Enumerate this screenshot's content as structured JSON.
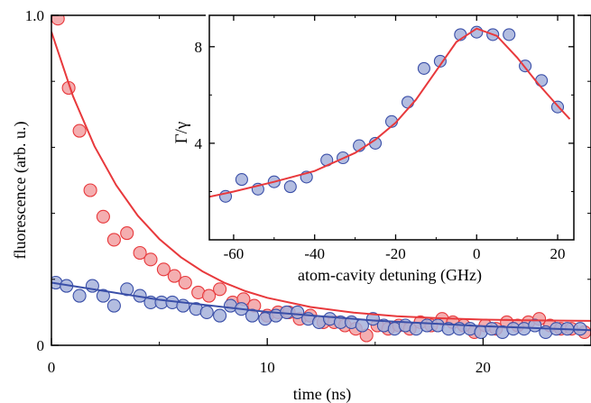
{
  "chart_data": [
    {
      "type": "scatter",
      "title": "",
      "xlabel": "time (ns)",
      "ylabel": "fluorescence (arb. u.)",
      "xlim": [
        0,
        25
      ],
      "ylim": [
        0,
        1.0
      ],
      "x_ticks": [
        0,
        10,
        20
      ],
      "x_tick_labels": [
        "0",
        "10",
        "20"
      ],
      "y_ticks": [
        0,
        1.0
      ],
      "y_tick_labels": [
        "0",
        "1.0"
      ],
      "grid": false,
      "colors": {
        "red": "#e8393c",
        "red_fill": "#f2a0a2",
        "blue": "#3a4fa8",
        "blue_fill": "#a6b1da"
      },
      "series": [
        {
          "color": "red",
          "points": [
            {
              "x": 0.3,
              "y": 0.99
            },
            {
              "x": 0.8,
              "y": 0.78
            },
            {
              "x": 1.3,
              "y": 0.65
            },
            {
              "x": 1.8,
              "y": 0.47
            },
            {
              "x": 2.4,
              "y": 0.39
            },
            {
              "x": 2.9,
              "y": 0.32
            },
            {
              "x": 3.5,
              "y": 0.34
            },
            {
              "x": 4.1,
              "y": 0.28
            },
            {
              "x": 4.6,
              "y": 0.26
            },
            {
              "x": 5.2,
              "y": 0.23
            },
            {
              "x": 5.7,
              "y": 0.21
            },
            {
              "x": 6.2,
              "y": 0.19
            },
            {
              "x": 6.8,
              "y": 0.16
            },
            {
              "x": 7.3,
              "y": 0.15
            },
            {
              "x": 7.8,
              "y": 0.17
            },
            {
              "x": 8.4,
              "y": 0.13
            },
            {
              "x": 8.9,
              "y": 0.14
            },
            {
              "x": 9.4,
              "y": 0.12
            },
            {
              "x": 10.0,
              "y": 0.09
            },
            {
              "x": 10.5,
              "y": 0.1
            },
            {
              "x": 11.0,
              "y": 0.1
            },
            {
              "x": 11.5,
              "y": 0.08
            },
            {
              "x": 12.0,
              "y": 0.09
            },
            {
              "x": 12.6,
              "y": 0.07
            },
            {
              "x": 13.1,
              "y": 0.07
            },
            {
              "x": 13.6,
              "y": 0.06
            },
            {
              "x": 14.1,
              "y": 0.05
            },
            {
              "x": 14.6,
              "y": 0.03
            },
            {
              "x": 15.1,
              "y": 0.06
            },
            {
              "x": 15.6,
              "y": 0.05
            },
            {
              "x": 16.1,
              "y": 0.06
            },
            {
              "x": 16.6,
              "y": 0.05
            },
            {
              "x": 17.1,
              "y": 0.07
            },
            {
              "x": 17.6,
              "y": 0.06
            },
            {
              "x": 18.1,
              "y": 0.08
            },
            {
              "x": 18.6,
              "y": 0.07
            },
            {
              "x": 19.1,
              "y": 0.06
            },
            {
              "x": 19.6,
              "y": 0.04
            },
            {
              "x": 20.1,
              "y": 0.06
            },
            {
              "x": 20.6,
              "y": 0.05
            },
            {
              "x": 21.1,
              "y": 0.07
            },
            {
              "x": 21.6,
              "y": 0.06
            },
            {
              "x": 22.1,
              "y": 0.07
            },
            {
              "x": 22.6,
              "y": 0.08
            },
            {
              "x": 23.1,
              "y": 0.06
            },
            {
              "x": 23.6,
              "y": 0.05
            },
            {
              "x": 24.1,
              "y": 0.05
            },
            {
              "x": 24.7,
              "y": 0.04
            }
          ],
          "fit": {
            "x": [
              0,
              1,
              2,
              3,
              4,
              5,
              6,
              7,
              8,
              9,
              10,
              12,
              14,
              16,
              18,
              20,
              22,
              25
            ],
            "y": [
              0.95,
              0.755,
              0.603,
              0.485,
              0.393,
              0.322,
              0.267,
              0.224,
              0.19,
              0.164,
              0.144,
              0.116,
              0.099,
              0.088,
              0.082,
              0.078,
              0.076,
              0.074
            ]
          }
        },
        {
          "color": "blue",
          "points": [
            {
              "x": 0.2,
              "y": 0.19
            },
            {
              "x": 0.7,
              "y": 0.18
            },
            {
              "x": 1.3,
              "y": 0.15
            },
            {
              "x": 1.9,
              "y": 0.18
            },
            {
              "x": 2.4,
              "y": 0.15
            },
            {
              "x": 2.9,
              "y": 0.12
            },
            {
              "x": 3.5,
              "y": 0.17
            },
            {
              "x": 4.1,
              "y": 0.15
            },
            {
              "x": 4.6,
              "y": 0.13
            },
            {
              "x": 5.1,
              "y": 0.13
            },
            {
              "x": 5.6,
              "y": 0.13
            },
            {
              "x": 6.1,
              "y": 0.12
            },
            {
              "x": 6.7,
              "y": 0.11
            },
            {
              "x": 7.2,
              "y": 0.1
            },
            {
              "x": 7.8,
              "y": 0.09
            },
            {
              "x": 8.3,
              "y": 0.12
            },
            {
              "x": 8.8,
              "y": 0.11
            },
            {
              "x": 9.3,
              "y": 0.09
            },
            {
              "x": 9.9,
              "y": 0.08
            },
            {
              "x": 10.4,
              "y": 0.09
            },
            {
              "x": 10.9,
              "y": 0.1
            },
            {
              "x": 11.4,
              "y": 0.1
            },
            {
              "x": 11.9,
              "y": 0.08
            },
            {
              "x": 12.4,
              "y": 0.07
            },
            {
              "x": 12.9,
              "y": 0.08
            },
            {
              "x": 13.4,
              "y": 0.07
            },
            {
              "x": 13.9,
              "y": 0.07
            },
            {
              "x": 14.4,
              "y": 0.06
            },
            {
              "x": 14.9,
              "y": 0.08
            },
            {
              "x": 15.4,
              "y": 0.06
            },
            {
              "x": 15.9,
              "y": 0.05
            },
            {
              "x": 16.4,
              "y": 0.06
            },
            {
              "x": 16.9,
              "y": 0.05
            },
            {
              "x": 17.4,
              "y": 0.06
            },
            {
              "x": 17.9,
              "y": 0.06
            },
            {
              "x": 18.4,
              "y": 0.05
            },
            {
              "x": 18.9,
              "y": 0.05
            },
            {
              "x": 19.4,
              "y": 0.05
            },
            {
              "x": 19.9,
              "y": 0.04
            },
            {
              "x": 20.4,
              "y": 0.05
            },
            {
              "x": 20.9,
              "y": 0.04
            },
            {
              "x": 21.4,
              "y": 0.05
            },
            {
              "x": 21.9,
              "y": 0.05
            },
            {
              "x": 22.4,
              "y": 0.06
            },
            {
              "x": 22.9,
              "y": 0.04
            },
            {
              "x": 23.4,
              "y": 0.05
            },
            {
              "x": 23.9,
              "y": 0.05
            },
            {
              "x": 24.5,
              "y": 0.05
            }
          ],
          "fit": {
            "x": [
              0,
              5,
              10,
              15,
              20,
              25
            ],
            "y": [
              0.19,
              0.138,
              0.101,
              0.075,
              0.058,
              0.046
            ]
          }
        }
      ]
    },
    {
      "type": "scatter",
      "title": "",
      "xlabel": "atom-cavity detuning (GHz)",
      "ylabel": "Γ/γ",
      "xlim": [
        -66,
        24
      ],
      "ylim": [
        0,
        9.3
      ],
      "x_ticks": [
        -60,
        -40,
        -20,
        0,
        20
      ],
      "x_tick_labels": [
        "-60",
        "-40",
        "-20",
        "0",
        "20"
      ],
      "y_ticks": [
        4,
        8
      ],
      "y_tick_labels": [
        "4",
        "8"
      ],
      "grid": false,
      "series": [
        {
          "color": "blue",
          "points": [
            {
              "x": -62,
              "y": 1.8
            },
            {
              "x": -58,
              "y": 2.5
            },
            {
              "x": -54,
              "y": 2.1
            },
            {
              "x": -50,
              "y": 2.4
            },
            {
              "x": -46,
              "y": 2.2
            },
            {
              "x": -42,
              "y": 2.6
            },
            {
              "x": -37,
              "y": 3.3
            },
            {
              "x": -33,
              "y": 3.4
            },
            {
              "x": -29,
              "y": 3.9
            },
            {
              "x": -25,
              "y": 4.0
            },
            {
              "x": -21,
              "y": 4.9
            },
            {
              "x": -17,
              "y": 5.7
            },
            {
              "x": -13,
              "y": 7.1
            },
            {
              "x": -9,
              "y": 7.4
            },
            {
              "x": -4,
              "y": 8.5
            },
            {
              "x": 0,
              "y": 8.6
            },
            {
              "x": 4,
              "y": 8.5
            },
            {
              "x": 8,
              "y": 8.5
            },
            {
              "x": 12,
              "y": 7.2
            },
            {
              "x": 16,
              "y": 6.6
            },
            {
              "x": 20,
              "y": 5.5
            }
          ],
          "fit": {
            "x": [
              -66,
              -60,
              -50,
              -40,
              -30,
              -25,
              -20,
              -15,
              -10,
              -5,
              0,
              5,
              10,
              15,
              20,
              23
            ],
            "y": [
              1.78,
              2.0,
              2.4,
              2.85,
              3.6,
              4.15,
              4.85,
              5.8,
              7.0,
              8.2,
              8.75,
              8.45,
              7.55,
              6.5,
              5.55,
              5.0
            ]
          },
          "fit_color": "red"
        }
      ]
    }
  ]
}
